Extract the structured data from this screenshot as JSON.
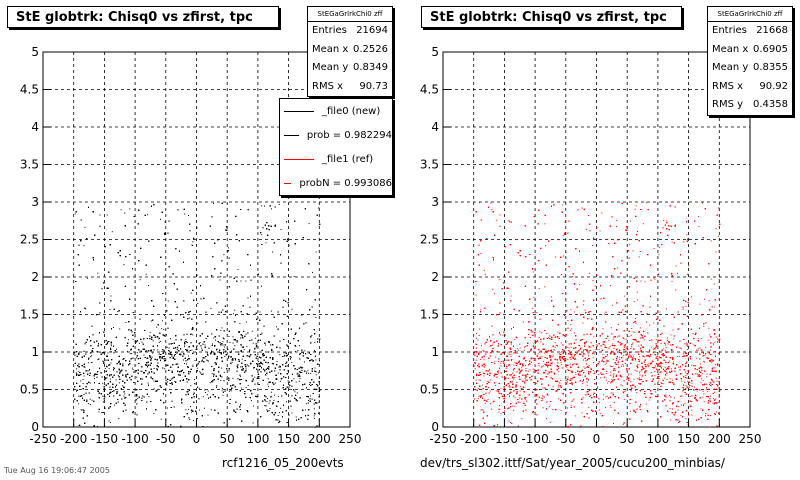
{
  "charts": [
    {
      "title": "StE globtrk: Chisq0 vs zfirst, tpc",
      "stats": {
        "header": "StEGaGrlrkChi0 zff",
        "rows": [
          {
            "label": "Entries",
            "value": "21694"
          },
          {
            "label": "Mean x",
            "value": "0.2526"
          },
          {
            "label": "Mean y",
            "value": "0.8349"
          },
          {
            "label": "RMS x",
            "value": "90.73"
          }
        ]
      },
      "legend": [
        {
          "label": "_file0 (new)",
          "color": "#000000"
        },
        {
          "label": "prob = 0.982294",
          "color": "#000000"
        },
        {
          "label": "_file1 (ref)",
          "color": "#ff0000"
        },
        {
          "label": "probN = 0.993086",
          "color": "#ff0000"
        }
      ],
      "caption": "rcf1216_05_200evts",
      "datestamp": "Tue Aug 16 19:06:47 2005",
      "point_color": "#000000"
    },
    {
      "title": "StE globtrk: Chisq0 vs zfirst, tpc",
      "stats": {
        "header": "StEGaGrlrkChi0 zff",
        "rows": [
          {
            "label": "Entries",
            "value": "21668"
          },
          {
            "label": "Mean x",
            "value": "0.6905"
          },
          {
            "label": "Mean y",
            "value": "0.8355"
          },
          {
            "label": "RMS x",
            "value": "90.92"
          },
          {
            "label": "RMS y",
            "value": "0.4358"
          }
        ]
      },
      "caption": "dev/trs_sl302.ittf/Sat/year_2005/cucu200_minbias/",
      "point_color": "#ff0000"
    }
  ],
  "chart_data": [
    {
      "type": "scatter",
      "title": "StE globtrk: Chisq0 vs zfirst, tpc",
      "xlim": [
        -250,
        250
      ],
      "ylim": [
        0,
        5
      ],
      "xticks": [
        -250,
        -200,
        -150,
        -100,
        -50,
        0,
        50,
        100,
        150,
        200,
        250
      ],
      "yticks": [
        0,
        0.5,
        1,
        1.5,
        2,
        2.5,
        3,
        3.5,
        4,
        4.5,
        5
      ],
      "grid": true,
      "distribution": {
        "x_range": [
          -200,
          200
        ],
        "y_core": [
          0.5,
          1.5
        ],
        "y_sparse_max": 3
      },
      "entries": 21694,
      "mean_x": 0.2526,
      "mean_y": 0.8349,
      "rms_x": 90.73
    },
    {
      "type": "scatter",
      "title": "StE globtrk: Chisq0 vs zfirst, tpc",
      "xlim": [
        -250,
        250
      ],
      "ylim": [
        0,
        5
      ],
      "xticks": [
        -250,
        -200,
        -150,
        -100,
        -50,
        0,
        50,
        100,
        150,
        200,
        250
      ],
      "yticks": [
        0,
        0.5,
        1,
        1.5,
        2,
        2.5,
        3,
        3.5,
        4,
        4.5,
        5
      ],
      "grid": true,
      "distribution": {
        "x_range": [
          -200,
          200
        ],
        "y_core": [
          0.5,
          1.5
        ],
        "y_sparse_max": 3
      },
      "entries": 21668,
      "mean_x": 0.6905,
      "mean_y": 0.8355,
      "rms_x": 90.92,
      "rms_y": 0.4358
    }
  ]
}
